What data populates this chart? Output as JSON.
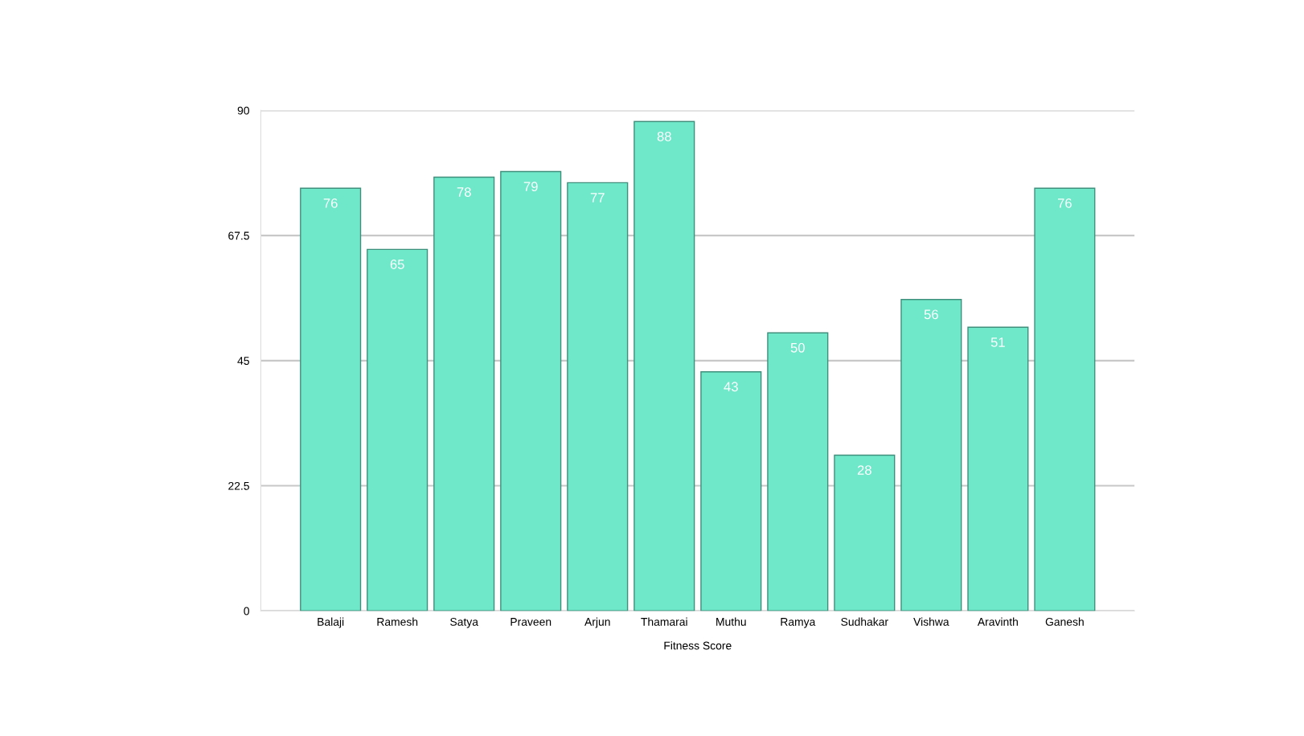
{
  "chart_data": {
    "type": "bar",
    "xlabel": "Fitness Score",
    "categories": [
      "Balaji",
      "Ramesh",
      "Satya",
      "Praveen",
      "Arjun",
      "Thamarai",
      "Muthu",
      "Ramya",
      "Sudhakar",
      "Vishwa",
      "Aravinth",
      "Ganesh"
    ],
    "values": [
      76,
      65,
      78,
      79,
      77,
      88,
      43,
      50,
      28,
      56,
      51,
      76
    ],
    "color": "#6ee8c9",
    "ylim": [
      0,
      90
    ],
    "yticks": [
      0,
      22.5,
      45,
      67.5,
      90
    ],
    "grid": "y",
    "data_labels": true
  }
}
